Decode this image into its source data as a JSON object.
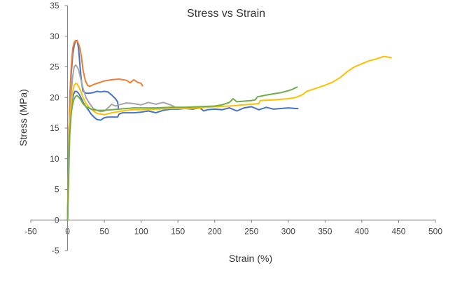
{
  "chart_data": {
    "type": "line",
    "title": "Stress vs Strain",
    "xlabel": "Strain (%)",
    "ylabel": "Stress (MPa)",
    "xlim": [
      -50,
      500
    ],
    "ylim": [
      -5,
      35
    ],
    "xticks": [
      -50,
      0,
      50,
      100,
      150,
      200,
      250,
      300,
      350,
      400,
      450,
      500
    ],
    "yticks": [
      -5,
      0,
      5,
      10,
      15,
      20,
      25,
      30,
      35
    ],
    "grid": false,
    "legend": "none",
    "series": [
      {
        "color": "#4472c4",
        "x": [
          0,
          2,
          4,
          6,
          8,
          10,
          12,
          14,
          16,
          18,
          20,
          22,
          25,
          28,
          32,
          36,
          40,
          45,
          50,
          55,
          60,
          65,
          68,
          70,
          75,
          80,
          85,
          90,
          100,
          110,
          120,
          130,
          140,
          150,
          160,
          170,
          180,
          185,
          190,
          200,
          210,
          220,
          230,
          240,
          250,
          260,
          270,
          280,
          290,
          300,
          310,
          313
        ],
        "y": [
          0,
          15,
          18,
          19.5,
          20.5,
          21,
          21,
          20.8,
          20.5,
          20,
          19.5,
          19,
          18.5,
          18,
          17.3,
          16.8,
          16.4,
          16.3,
          16.7,
          16.8,
          16.8,
          16.8,
          16.8,
          17.3,
          17.5,
          17.5,
          17.5,
          17.5,
          17.6,
          17.8,
          17.5,
          17.9,
          18.1,
          18.1,
          18.2,
          18.1,
          18.3,
          17.8,
          18,
          18.1,
          18.0,
          18.3,
          17.8,
          18.3,
          18.5,
          18.0,
          18.4,
          18.1,
          18.2,
          18.3,
          18.2,
          18.2
        ]
      },
      {
        "color": "#4472c4",
        "x": [
          0,
          3,
          5,
          7,
          9,
          11,
          13,
          15,
          17,
          19,
          21,
          25,
          30,
          35,
          40,
          45,
          50,
          55,
          60,
          65,
          68,
          69
        ],
        "y": [
          0,
          20,
          24,
          27,
          28.5,
          29.3,
          29.3,
          28,
          25,
          22.5,
          21,
          20.7,
          20.7,
          20.8,
          21,
          20.9,
          21,
          20.9,
          20.4,
          19.8,
          19.3,
          18.3
        ]
      },
      {
        "color": "#ed7d31",
        "x": [
          0,
          3,
          5,
          7,
          9,
          11,
          13,
          15,
          17,
          19,
          21,
          24,
          27,
          30,
          35,
          40,
          50,
          60,
          70,
          80,
          85,
          90,
          95,
          100,
          102
        ],
        "y": [
          0,
          20,
          25,
          28,
          29,
          29.3,
          29.2,
          28.7,
          28,
          26.5,
          24.5,
          22.8,
          22,
          21.8,
          22.1,
          22.3,
          22.7,
          22.9,
          23,
          22.8,
          22.4,
          22.9,
          22.5,
          22.3,
          21.9
        ]
      },
      {
        "color": "#a5a5a5",
        "x": [
          0,
          3,
          5,
          7,
          9,
          11,
          13,
          15,
          18,
          21,
          25,
          30,
          35,
          40,
          45,
          50,
          55,
          60,
          65,
          70,
          80,
          90,
          100,
          110,
          120,
          130,
          140,
          145
        ],
        "y": [
          0,
          17,
          21,
          23.5,
          25,
          25.3,
          25,
          24.5,
          23,
          21.5,
          20,
          19,
          18.2,
          17.9,
          17.7,
          17.8,
          18.3,
          18.9,
          18.6,
          18.8,
          19.1,
          19,
          18.8,
          19.2,
          18.9,
          19.2,
          18.8,
          18.5
        ]
      },
      {
        "color": "#ffc000",
        "x": [
          0,
          3,
          5,
          7,
          9,
          11,
          13,
          15,
          18,
          21,
          25,
          30,
          35,
          40,
          50,
          60,
          70,
          80,
          90,
          100,
          120,
          140,
          160,
          180,
          200,
          220,
          240,
          260,
          262,
          280,
          300,
          310,
          320,
          325,
          330,
          340,
          350,
          360,
          370,
          380,
          390,
          400,
          410,
          420,
          430,
          440
        ],
        "y": [
          0,
          16,
          19,
          21,
          22,
          22.3,
          22.2,
          21.8,
          21,
          20,
          19,
          18.3,
          17.8,
          17.4,
          17.2,
          17.5,
          17.7,
          17.9,
          18,
          18,
          18.1,
          18.2,
          18.2,
          18.3,
          18.5,
          18.6,
          18.8,
          19,
          19.5,
          19.6,
          19.8,
          20,
          20.5,
          21,
          21.2,
          21.6,
          22,
          22.5,
          23.2,
          24.2,
          25,
          25.5,
          26,
          26.3,
          26.7,
          26.5
        ]
      },
      {
        "color": "#70ad47",
        "x": [
          0,
          3,
          5,
          7,
          9,
          11,
          13,
          15,
          18,
          21,
          25,
          30,
          35,
          40,
          50,
          60,
          70,
          80,
          90,
          100,
          120,
          140,
          160,
          180,
          200,
          210,
          220,
          225,
          230,
          240,
          250,
          255,
          258,
          270,
          280,
          290,
          300,
          305,
          310,
          312
        ],
        "y": [
          0,
          14,
          17.5,
          19,
          19.8,
          20.2,
          20.3,
          20.1,
          19.6,
          19,
          18.5,
          18.2,
          18,
          17.9,
          17.9,
          18,
          18.1,
          18.2,
          18.3,
          18.3,
          18.3,
          18.4,
          18.4,
          18.5,
          18.6,
          18.8,
          19.2,
          19.8,
          19.3,
          19.4,
          19.5,
          19.6,
          20.1,
          20.4,
          20.6,
          20.8,
          21.1,
          21.3,
          21.6,
          21.7
        ]
      }
    ]
  }
}
